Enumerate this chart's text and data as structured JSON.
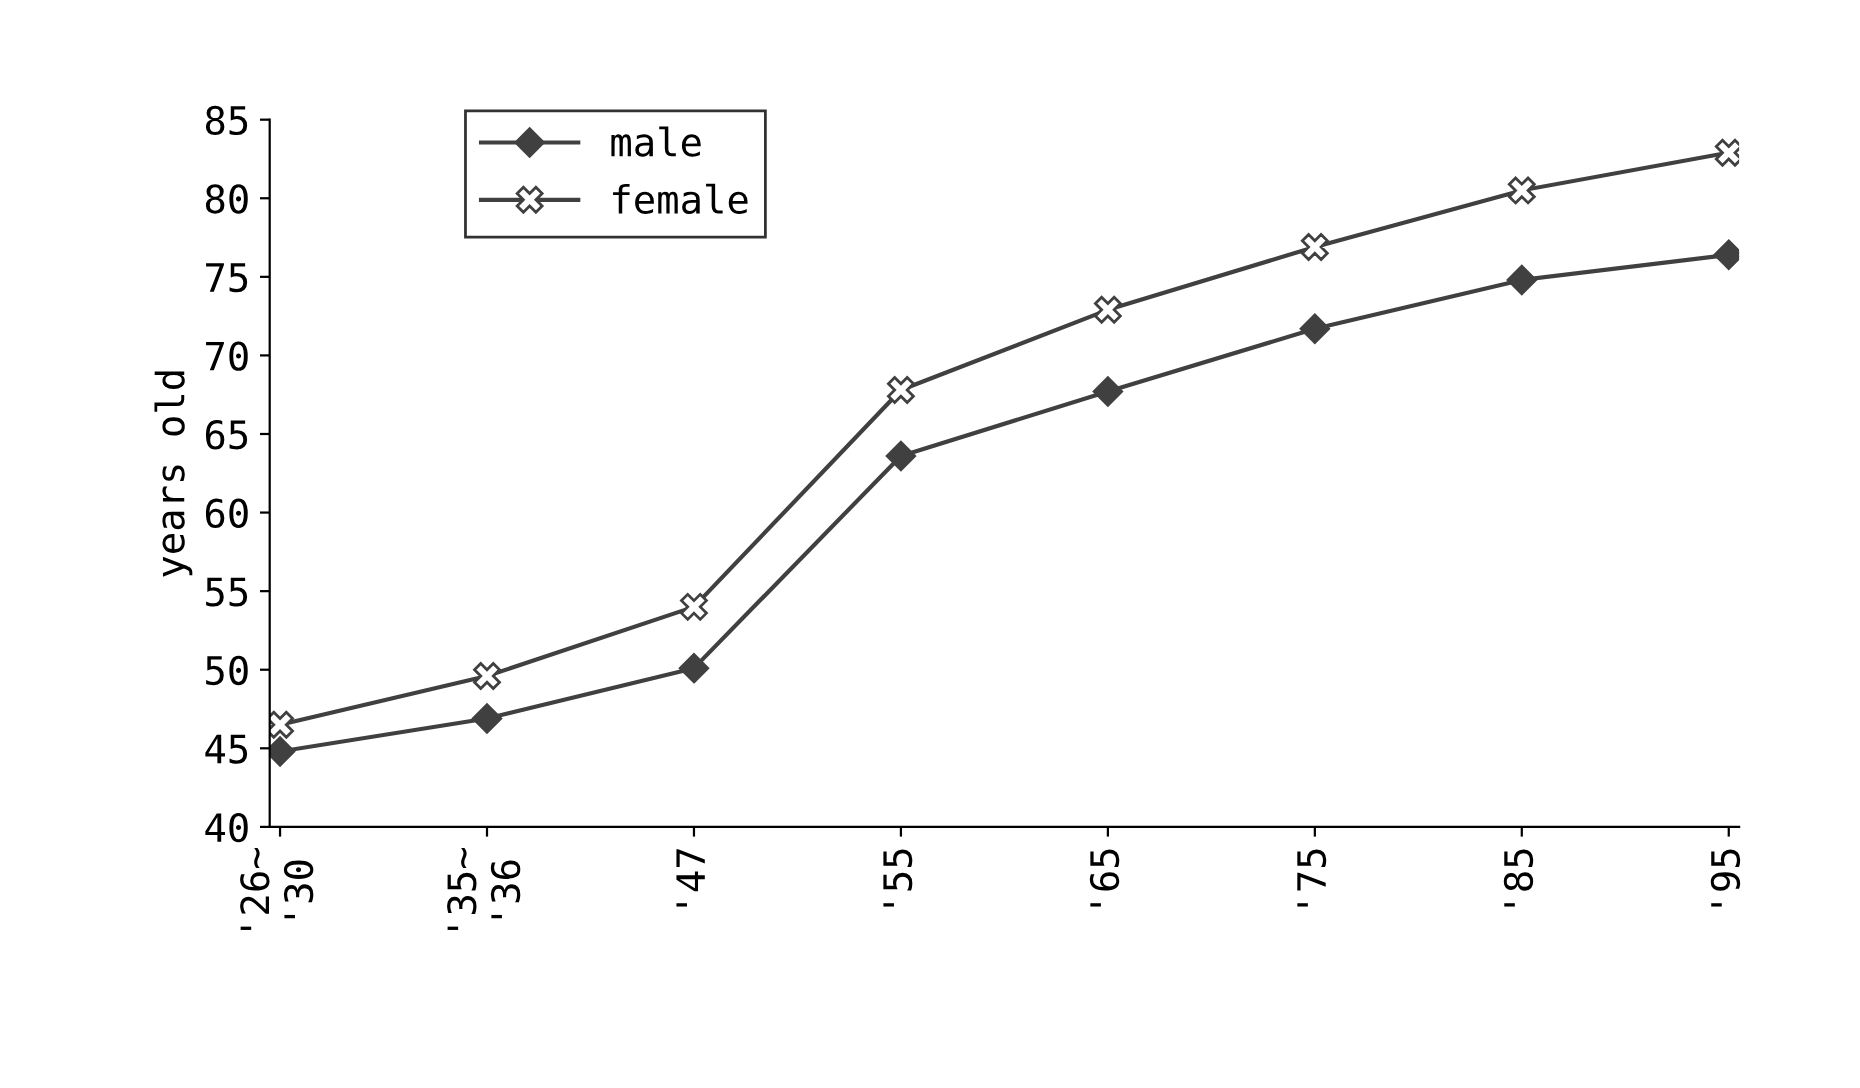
{
  "chart_data": {
    "type": "line",
    "ylabel": "years old",
    "categories": [
      "'26~\n'30",
      "'35~\n'36",
      "'47",
      "'55",
      "'65",
      "'75",
      "'85",
      "'95"
    ],
    "series": [
      {
        "name": "male",
        "color": "#404040",
        "marker": "diamond",
        "values": [
          44.8,
          46.9,
          50.1,
          63.6,
          67.7,
          71.7,
          74.8,
          76.4
        ]
      },
      {
        "name": "female",
        "color": "#404040",
        "marker": "cross",
        "values": [
          46.5,
          49.6,
          54.0,
          67.8,
          72.9,
          76.9,
          80.5,
          82.9
        ]
      }
    ],
    "ylim": [
      40,
      85
    ],
    "yticks": [
      40,
      45,
      50,
      55,
      60,
      65,
      70,
      75,
      80,
      85
    ],
    "grid": false,
    "legend": "top left",
    "line_style": "solid"
  }
}
